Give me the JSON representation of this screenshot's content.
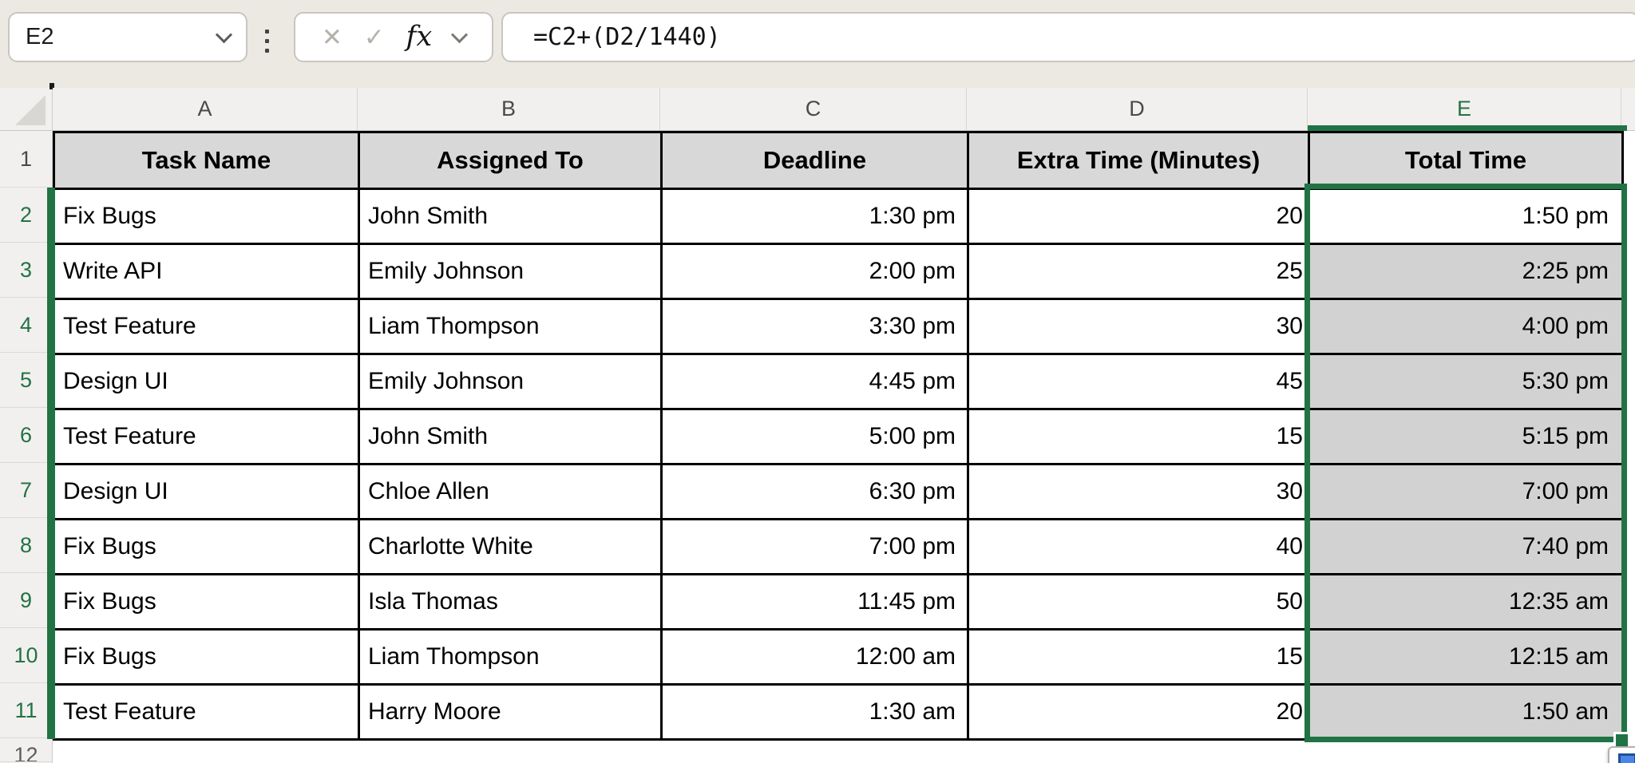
{
  "name_box": {
    "value": "E2"
  },
  "formula_bar": {
    "formula": "=C2+(D2/1440)"
  },
  "icons": {
    "cancel": "✕",
    "confirm": "✓",
    "function": "fx",
    "chevron_down": "",
    "grip": "vertical-dots",
    "select_all": "corner-triangle",
    "autofill_options": "blue-square"
  },
  "selection": {
    "active_cell": "E2",
    "range": "E2:E11",
    "selected_column": "E",
    "selected_row_numbers": [
      2,
      3,
      4,
      5,
      6,
      7,
      8,
      9,
      10,
      11
    ]
  },
  "sheet": {
    "column_letters": [
      "A",
      "B",
      "C",
      "D",
      "E"
    ],
    "header_row_number": 1,
    "header_row": [
      "Task Name",
      "Assigned To",
      "Deadline",
      "Extra Time (Minutes)",
      "Total Time"
    ],
    "rows": [
      {
        "n": 2,
        "cells": [
          "Fix Bugs",
          "John Smith",
          "1:30 pm",
          "20",
          "1:50 pm"
        ]
      },
      {
        "n": 3,
        "cells": [
          "Write API",
          "Emily Johnson",
          "2:00 pm",
          "25",
          "2:25 pm"
        ]
      },
      {
        "n": 4,
        "cells": [
          "Test Feature",
          "Liam Thompson",
          "3:30 pm",
          "30",
          "4:00 pm"
        ]
      },
      {
        "n": 5,
        "cells": [
          "Design UI",
          "Emily Johnson",
          "4:45 pm",
          "45",
          "5:30 pm"
        ]
      },
      {
        "n": 6,
        "cells": [
          "Test Feature",
          "John Smith",
          "5:00 pm",
          "15",
          "5:15 pm"
        ]
      },
      {
        "n": 7,
        "cells": [
          "Design UI",
          "Chloe Allen",
          "6:30 pm",
          "30",
          "7:00 pm"
        ]
      },
      {
        "n": 8,
        "cells": [
          "Fix Bugs",
          "Charlotte White",
          "7:00 pm",
          "40",
          "7:40 pm"
        ]
      },
      {
        "n": 9,
        "cells": [
          "Fix Bugs",
          "Isla Thomas",
          "11:45 pm",
          "50",
          "12:35 am"
        ]
      },
      {
        "n": 10,
        "cells": [
          "Fix Bugs",
          "Liam Thompson",
          "12:00 am",
          "15",
          "12:15 am"
        ]
      },
      {
        "n": 11,
        "cells": [
          "Test Feature",
          "Harry Moore",
          "1:30 am",
          "20",
          "1:50 am"
        ]
      }
    ],
    "partial_next_row": 12
  },
  "colors": {
    "accent_green": "#217346",
    "selection_fill": "#D2D2D2",
    "header_row_fill": "#D8D8D8",
    "topbar_background": "#ECE8E2",
    "autofill_icon_blue": "#4a86e8"
  }
}
